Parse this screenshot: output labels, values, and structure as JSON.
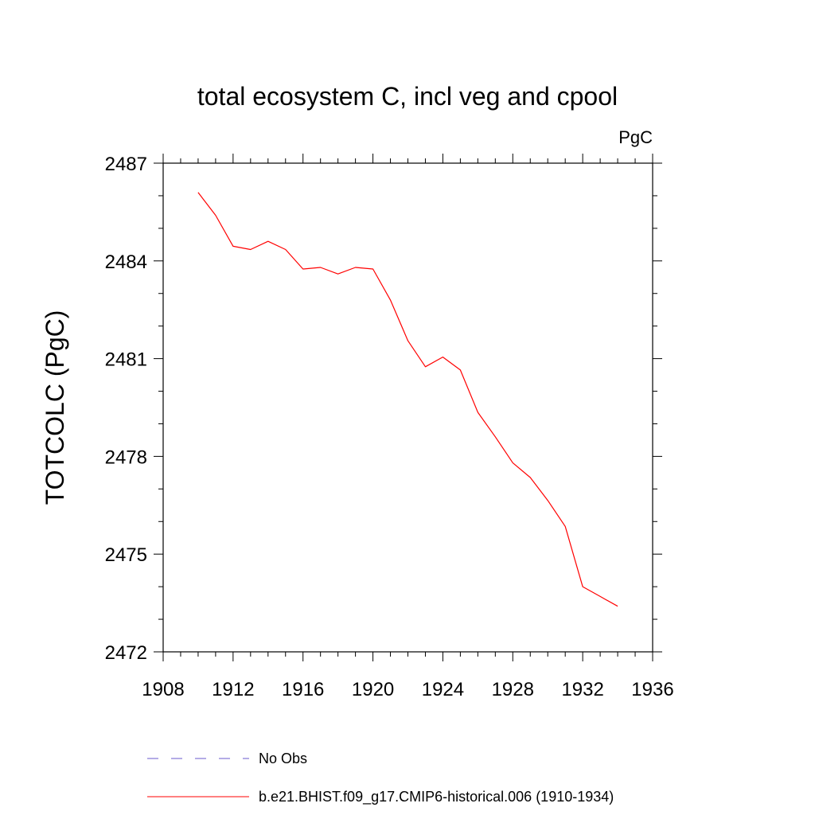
{
  "chart_data": {
    "type": "line",
    "title": "total ecosystem C, incl veg and cpool",
    "units": "PgC",
    "xlabel": "",
    "ylabel": "TOTCOLC  (PgC)",
    "xlim": [
      1908,
      1936
    ],
    "ylim": [
      2472,
      2487
    ],
    "x_ticks": [
      "1908",
      "1912",
      "1916",
      "1920",
      "1924",
      "1928",
      "1932",
      "1936"
    ],
    "y_ticks": [
      "2472",
      "2475",
      "2478",
      "2481",
      "2484",
      "2487"
    ],
    "grid": false,
    "series": [
      {
        "name": "b.e21.BHIST.f09_g17.CMIP6-historical.006 (1910-1934)",
        "color": "#ff0000",
        "style": "solid",
        "x": [
          1910,
          1911,
          1912,
          1913,
          1914,
          1915,
          1916,
          1917,
          1918,
          1919,
          1920,
          1921,
          1922,
          1923,
          1924,
          1925,
          1926,
          1927,
          1928,
          1929,
          1930,
          1931,
          1932,
          1933,
          1934
        ],
        "y": [
          2486.1,
          2485.4,
          2484.45,
          2484.35,
          2484.6,
          2484.35,
          2483.75,
          2483.8,
          2483.6,
          2483.8,
          2483.75,
          2482.8,
          2481.55,
          2480.75,
          2481.05,
          2480.65,
          2479.35,
          2478.6,
          2477.8,
          2477.35,
          2476.65,
          2475.85,
          2474.0,
          2473.7,
          2473.4
        ]
      }
    ],
    "legend": {
      "position": "bottom",
      "entries": [
        {
          "label": "No Obs",
          "color": "#6a5acd",
          "style": "dashed"
        },
        {
          "label": "b.e21.BHIST.f09_g17.CMIP6-historical.006 (1910-1934)",
          "color": "#ff0000",
          "style": "solid"
        }
      ]
    }
  }
}
